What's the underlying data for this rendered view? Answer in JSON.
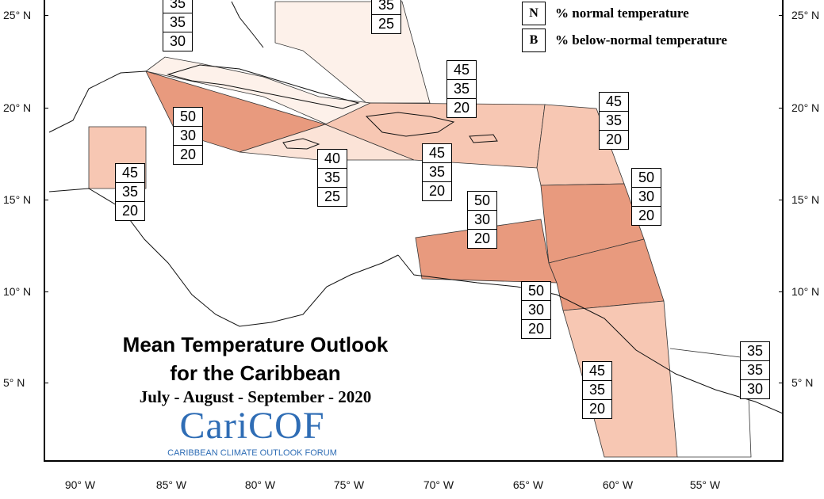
{
  "map": {
    "title_line1": "Mean Temperature Outlook",
    "title_line2": "for the Caribbean",
    "period": "July - August - September - 2020",
    "logo_text": "CariCOF",
    "logo_subtitle": "CARIBBEAN CLIMATE OUTLOOK FORUM",
    "legend": [
      {
        "key": "N",
        "text": "% normal temperature"
      },
      {
        "key": "B",
        "text": "% below-normal temperature"
      }
    ],
    "longitude_labels": [
      "90° W",
      "85° W",
      "80° W",
      "75° W",
      "70° W",
      "65° W",
      "60° W",
      "55° W"
    ],
    "latitude_labels": [
      "25° N",
      "20° N",
      "15° N",
      "10° N",
      "5° N"
    ],
    "colors": {
      "above_50": "#e89a7e",
      "above_45": "#f7c7b3",
      "above_40": "#fbe3d7",
      "above_35": "#fdf1ea"
    },
    "forecast_boxes": [
      {
        "values": [
          "35",
          "35",
          "30"
        ]
      },
      {
        "values": [
          "35",
          "25"
        ]
      },
      {
        "values": [
          "45",
          "35",
          "20"
        ]
      },
      {
        "values": [
          "50",
          "30",
          "20"
        ]
      },
      {
        "values": [
          "40",
          "35",
          "25"
        ]
      },
      {
        "values": [
          "45",
          "35",
          "20"
        ]
      },
      {
        "values": [
          "45",
          "35",
          "20"
        ]
      },
      {
        "values": [
          "45",
          "35",
          "20"
        ]
      },
      {
        "values": [
          "50",
          "30",
          "20"
        ]
      },
      {
        "values": [
          "50",
          "30",
          "20"
        ]
      },
      {
        "values": [
          "50",
          "30",
          "20"
        ]
      },
      {
        "values": [
          "45",
          "35",
          "20"
        ]
      },
      {
        "values": [
          "35",
          "35",
          "30"
        ]
      }
    ]
  }
}
